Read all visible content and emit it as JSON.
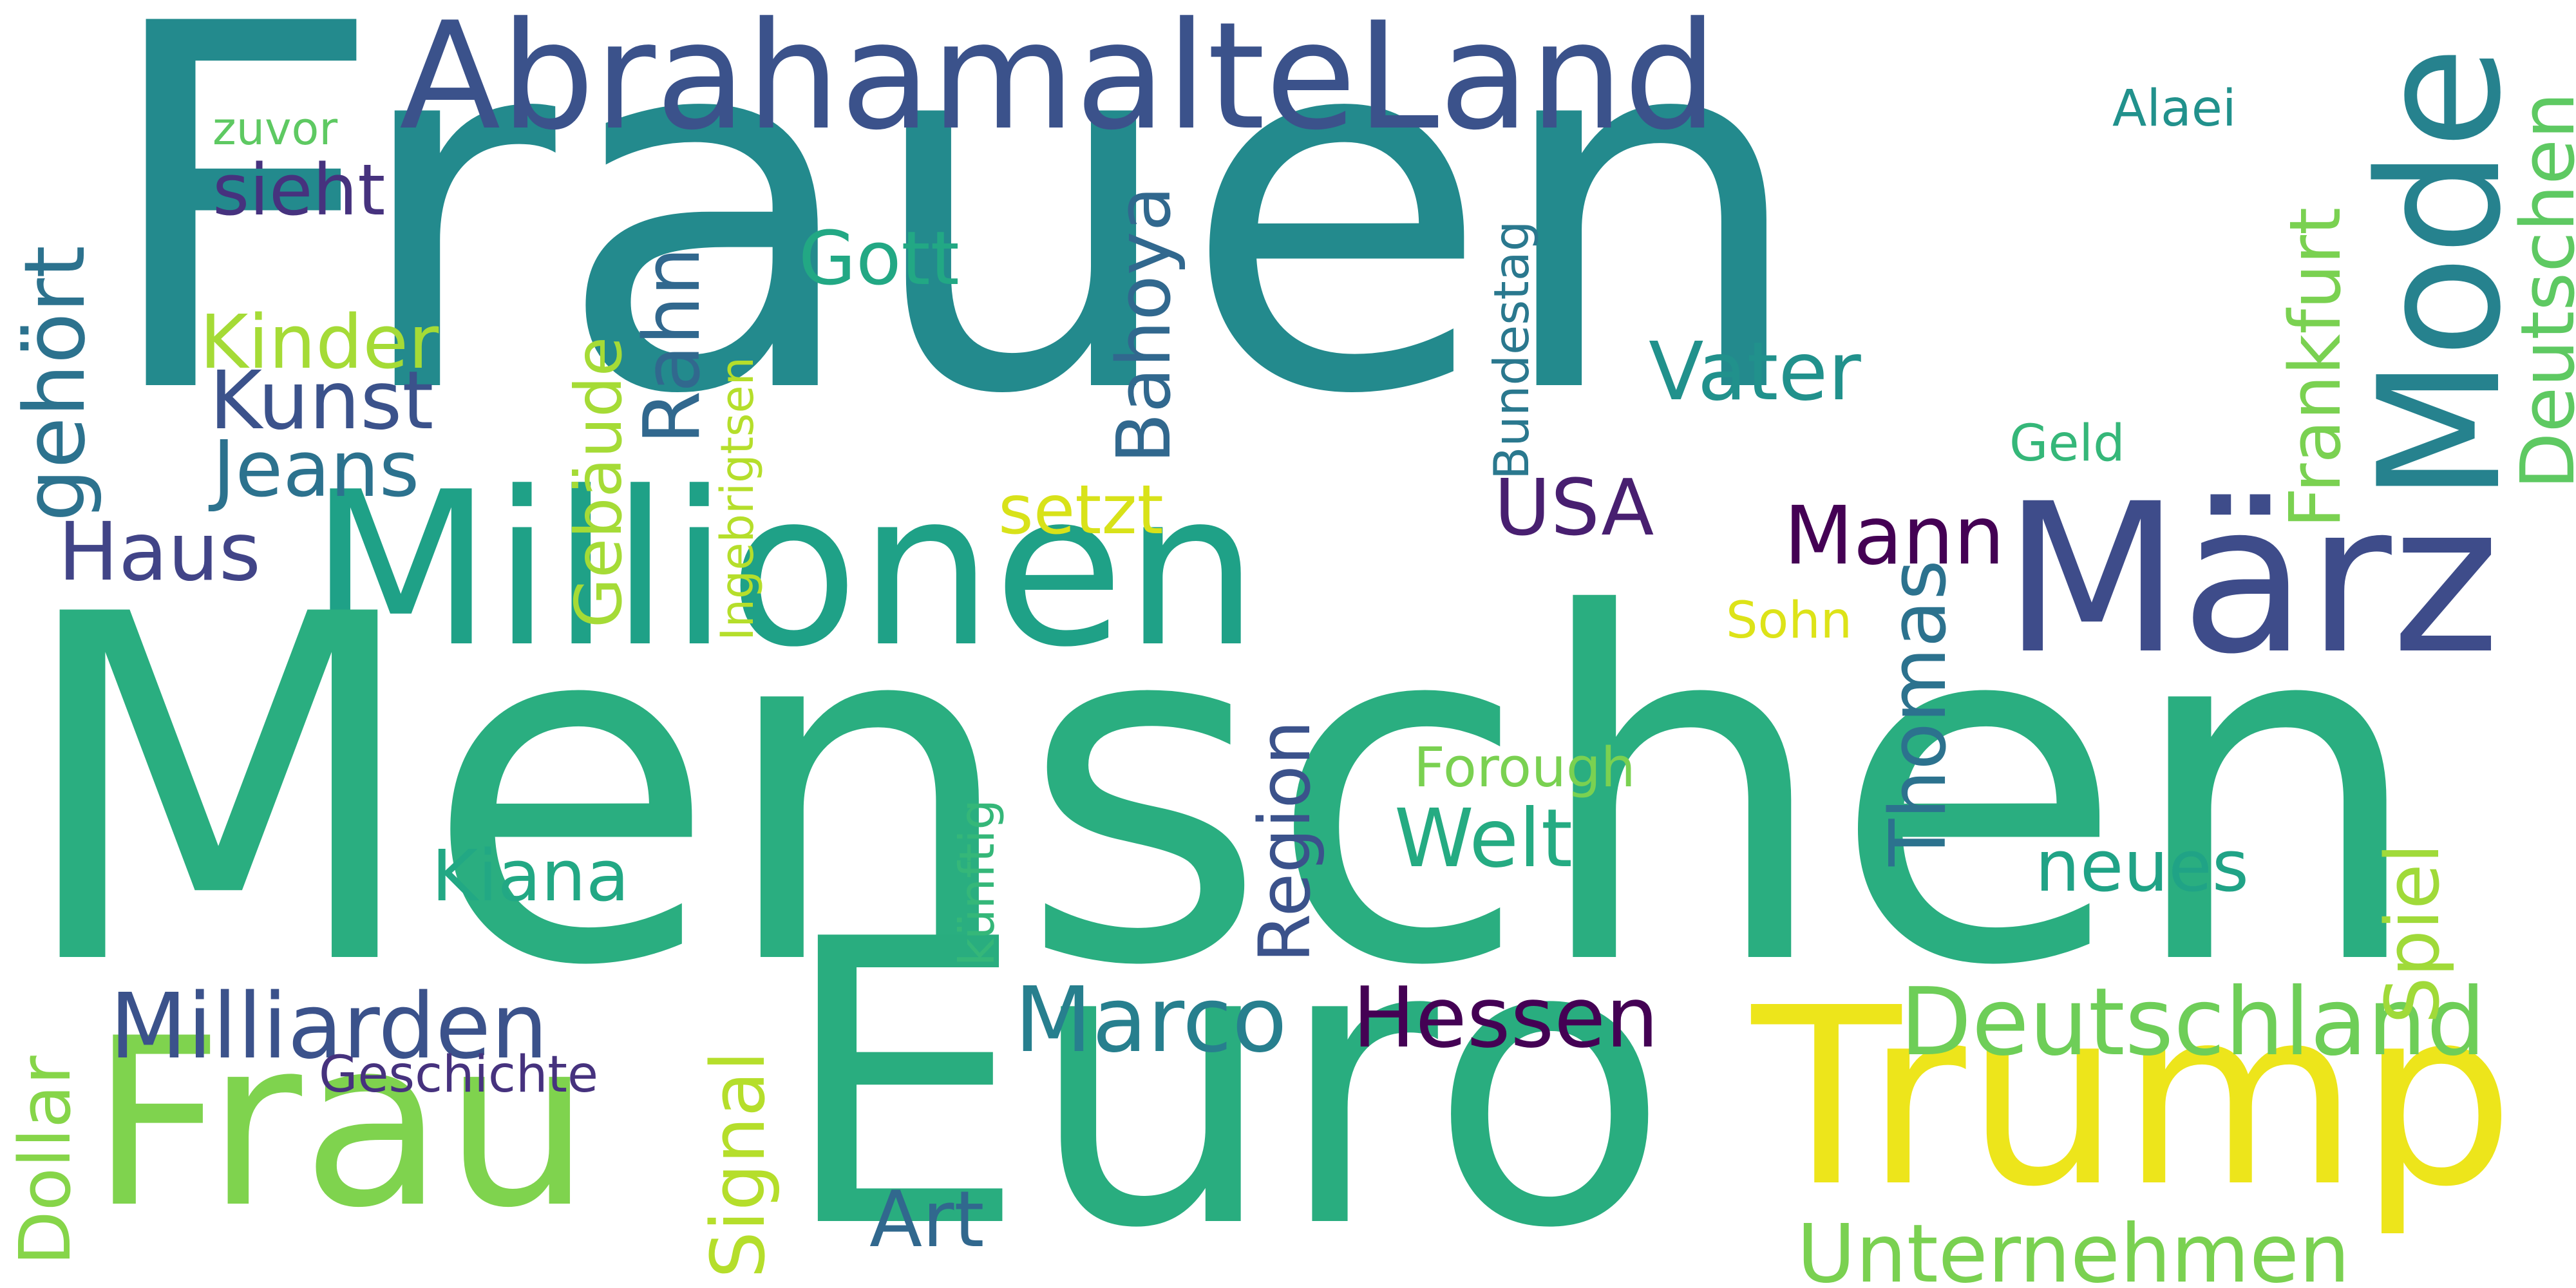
{
  "words": {
    "frauen": "Frauen",
    "menschen": "Menschen",
    "euro": "Euro",
    "frau": "Frau",
    "trump": "Trump",
    "abrahamalteland": "AbrahamalteLand",
    "millionen": "Millionen",
    "marz": "März",
    "mode": "Mode",
    "deutschland": "Deutschland",
    "milliarden": "Milliarden",
    "marco": "Marco",
    "hessen": "Hessen",
    "unternehmen": "Unternehmen",
    "kunst": "Kunst",
    "jeans": "Jeans",
    "haus": "Haus",
    "kinder": "Kinder",
    "sieht": "sieht",
    "zuvor": "zuvor",
    "gehort": "gehört",
    "rahn": "Rahn",
    "gebaude": "Gebäude",
    "ingebrigtsen": "Ingebrigtsen",
    "gott": "Gott",
    "bahoya": "Bahoya",
    "setzt": "setzt",
    "bundestag": "Bundestag",
    "vater": "Vater",
    "usa": "USA",
    "mann": "Mann",
    "frankfurt": "Frankfurt",
    "deutschen": "Deutschen",
    "alaei": "Alaei",
    "geld": "Geld",
    "sohn": "Sohn",
    "thomas": "Thomas",
    "forough": "Forough",
    "welt": "Welt",
    "neues": "neues",
    "region": "Region",
    "kunftig": "künftig",
    "kiana": "Kiana",
    "signal": "Signal",
    "geschichte": "Geschichte",
    "dollar": "Dollar",
    "art": "Art",
    "spiel": "Spiel"
  },
  "colors": {
    "frauen": "#238a8d",
    "menschen": "#2aae80",
    "euro": "#29ad7f",
    "frau": "#7fd34e",
    "trump": "#ede51b",
    "abrahamalteland": "#3b528b",
    "millionen": "#1fa187",
    "marz": "#3e4c8a",
    "mode": "#26828e",
    "deutschland": "#6ece58",
    "milliarden": "#3b528b",
    "marco": "#277f8e",
    "hessen": "#440154",
    "unternehmen": "#7ad151",
    "kunst": "#3b528b",
    "jeans": "#2c728e",
    "haus": "#414487",
    "kinder": "#a5db36",
    "sieht": "#46327e",
    "zuvor": "#5ec962",
    "gehort": "#2c728e",
    "rahn": "#31688e",
    "gebaude": "#a5db36",
    "ingebrigtsen": "#b5de2b",
    "gott": "#22a884",
    "bahoya": "#31688e",
    "setzt": "#d8e219",
    "bundestag": "#2a788e",
    "vater": "#21918c",
    "usa": "#481f70",
    "mann": "#440154",
    "frankfurt": "#7ad151",
    "deutschen": "#5ec962",
    "alaei": "#21918c",
    "geld": "#35b779",
    "sohn": "#dde318",
    "thomas": "#2c728e",
    "forough": "#7ad151",
    "welt": "#25ab82",
    "neues": "#20a386",
    "region": "#3b528b",
    "kunftig": "#35b779",
    "kiana": "#22a884",
    "signal": "#b5de2b",
    "geschichte": "#46327e",
    "dollar": "#86d549",
    "art": "#31688e",
    "spiel": "#a0da39"
  }
}
